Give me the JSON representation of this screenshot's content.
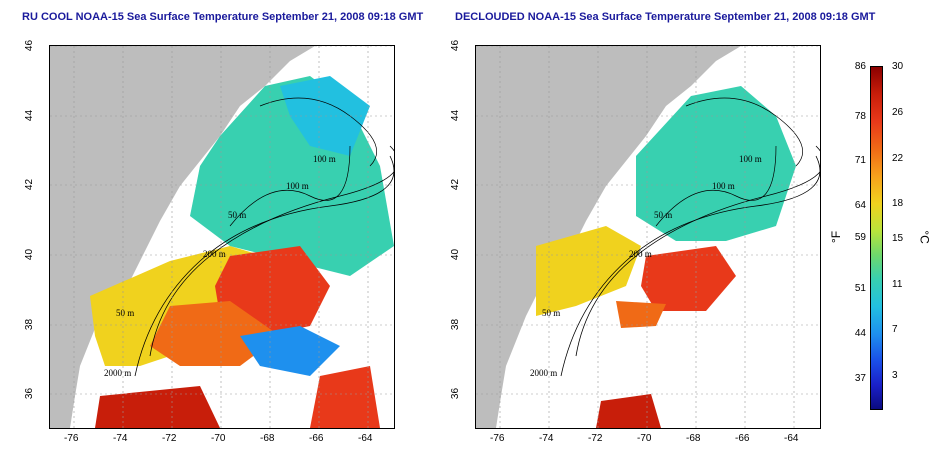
{
  "left_panel": {
    "title": "RU COOL NOAA-15 Sea Surface Temperature September 21, 2008 09:18 GMT",
    "contours": [
      "100 m",
      "100 m",
      "50 m",
      "200 m",
      "50 m",
      "2000 m"
    ]
  },
  "right_panel": {
    "title": "DECLOUDED NOAA-15 Sea Surface Temperature September 21, 2008 09:18 GMT",
    "contours": [
      "100 m",
      "100 m",
      "50 m",
      "200 m",
      "50 m",
      "2000 m"
    ]
  },
  "x_ticks": [
    "-76",
    "-74",
    "-72",
    "-70",
    "-68",
    "-66",
    "-64"
  ],
  "y_ticks": [
    "46",
    "44",
    "42",
    "40",
    "38",
    "36"
  ],
  "colorbar": {
    "fahrenheit_ticks": [
      "86",
      "78",
      "71",
      "64",
      "59",
      "51",
      "44",
      "37"
    ],
    "celsius_ticks": [
      "30",
      "26",
      "22",
      "18",
      "15",
      "11",
      "7",
      "3"
    ],
    "fahrenheit_unit": "°F",
    "celsius_unit": "°C"
  },
  "colors": {
    "land": "#bdbdbd",
    "title": "#1a1a9c",
    "grid": "#999999"
  }
}
